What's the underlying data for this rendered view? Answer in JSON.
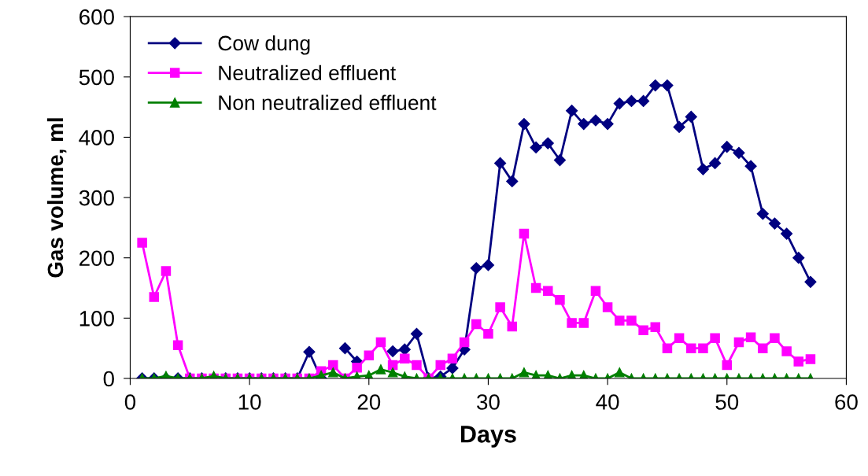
{
  "chart_data": {
    "type": "line",
    "xlabel": "Days",
    "ylabel": "Gas volume, ml",
    "x": [
      1,
      2,
      3,
      4,
      5,
      6,
      7,
      8,
      9,
      10,
      11,
      12,
      13,
      14,
      15,
      16,
      17,
      18,
      19,
      20,
      21,
      22,
      23,
      24,
      25,
      26,
      27,
      28,
      29,
      30,
      31,
      32,
      33,
      34,
      35,
      36,
      37,
      38,
      39,
      40,
      41,
      42,
      43,
      44,
      45,
      46,
      47,
      48,
      49,
      50,
      51,
      52,
      53,
      54,
      55,
      56,
      57
    ],
    "series": [
      {
        "name": "Cow dung",
        "color": "#000080",
        "marker": "diamond",
        "values": [
          0,
          0,
          0,
          0,
          0,
          0,
          0,
          0,
          0,
          0,
          0,
          0,
          0,
          0,
          44,
          0,
          null,
          50,
          28,
          null,
          null,
          45,
          48,
          74,
          0,
          3,
          17,
          48,
          183,
          188,
          357,
          327,
          422,
          383,
          390,
          362,
          444,
          422,
          428,
          422,
          456,
          460,
          460,
          486,
          486,
          417,
          434,
          347,
          357,
          384,
          374,
          352,
          273,
          257,
          240,
          200,
          160
        ]
      },
      {
        "name": "Neutralized effluent",
        "color": "#ff00ff",
        "marker": "square",
        "values": [
          225,
          135,
          178,
          55,
          0,
          0,
          0,
          0,
          0,
          0,
          0,
          0,
          0,
          0,
          0,
          12,
          22,
          0,
          18,
          38,
          60,
          22,
          33,
          22,
          0,
          22,
          33,
          60,
          90,
          74,
          118,
          86,
          240,
          150,
          145,
          130,
          92,
          92,
          145,
          118,
          96,
          96,
          80,
          85,
          50,
          67,
          50,
          50,
          67,
          22,
          60,
          68,
          50,
          67,
          45,
          28,
          32
        ]
      },
      {
        "name": "Non neutralized effluent",
        "color": "#008000",
        "marker": "triangle",
        "values": [
          0,
          0,
          4,
          0,
          0,
          0,
          4,
          0,
          0,
          0,
          0,
          0,
          0,
          0,
          0,
          5,
          10,
          0,
          3,
          5,
          15,
          10,
          3,
          0,
          0,
          0,
          0,
          0,
          0,
          0,
          0,
          0,
          10,
          5,
          5,
          0,
          5,
          5,
          0,
          0,
          10,
          0,
          0,
          0,
          0,
          0,
          0,
          0,
          0,
          0,
          0,
          0,
          0,
          0,
          0,
          0,
          0
        ]
      }
    ],
    "xlim": [
      0,
      60
    ],
    "xticks": [
      0,
      10,
      20,
      30,
      40,
      50,
      60
    ],
    "ylim": [
      0,
      600
    ],
    "yticks": [
      0,
      100,
      200,
      300,
      400,
      500,
      600
    ],
    "grid": false,
    "legend": "top left",
    "line_style": "solid"
  }
}
